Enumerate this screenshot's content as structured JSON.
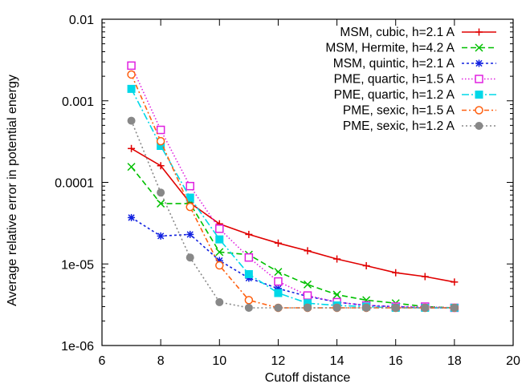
{
  "chart_data": {
    "type": "line",
    "title": "",
    "xlabel": "Cutoff distance",
    "ylabel": "Average relative error in potential energy",
    "xlim": [
      6,
      20
    ],
    "ylim": [
      1e-06,
      0.01
    ],
    "yscale": "log",
    "grid": false,
    "legend_position": "top-right",
    "x_ticks": [
      "6",
      "8",
      "10",
      "12",
      "14",
      "16",
      "18",
      "20"
    ],
    "y_ticks": [
      "1e-06",
      "1e-05",
      "0.0001",
      "0.001",
      "0.01"
    ],
    "series": [
      {
        "name": "MSM, cubic, h=2.1 A",
        "color": "#e00000",
        "dash": "",
        "marker": "plus",
        "x": [
          7,
          8,
          9,
          10,
          11,
          12,
          13,
          14,
          15,
          16,
          17,
          18
        ],
        "y": [
          0.00026,
          0.00016,
          5.6e-05,
          3.1e-05,
          2.3e-05,
          1.8e-05,
          1.45e-05,
          1.15e-05,
          9.5e-06,
          7.8e-06,
          7e-06,
          6e-06
        ]
      },
      {
        "name": "MSM, Hermite, h=4.2 A",
        "color": "#00c000",
        "dash": "7,4",
        "marker": "x",
        "x": [
          7,
          8,
          9,
          10,
          11,
          12,
          13,
          14,
          15,
          16,
          17,
          18
        ],
        "y": [
          0.000155,
          5.5e-05,
          5.5e-05,
          1.4e-05,
          1.3e-05,
          8e-06,
          5.6e-06,
          4.2e-06,
          3.6e-06,
          3.3e-06,
          3e-06,
          2.9e-06
        ]
      },
      {
        "name": "MSM, quintic, h=2.1 A",
        "color": "#1020e0",
        "dash": "3,3",
        "marker": "star",
        "x": [
          7,
          8,
          9,
          10,
          11,
          12,
          13,
          14,
          15,
          16,
          17,
          18
        ],
        "y": [
          3.7e-05,
          2.2e-05,
          2.3e-05,
          1.1e-05,
          6.7e-06,
          5e-06,
          4e-06,
          3.4e-06,
          3.1e-06,
          3e-06,
          2.9e-06,
          2.9e-06
        ]
      },
      {
        "name": "PME, quartic, h=1.5 A",
        "color": "#e020e0",
        "dash": "1.5,2.5",
        "marker": "open-square",
        "x": [
          7,
          8,
          9,
          10,
          11,
          12,
          13,
          14,
          15,
          16,
          17,
          18
        ],
        "y": [
          0.0027,
          0.00044,
          9e-05,
          2.7e-05,
          1.2e-05,
          6.1e-06,
          4.1e-06,
          3.4e-06,
          3.1e-06,
          3e-06,
          3e-06,
          2.9e-06
        ]
      },
      {
        "name": "PME, quartic, h=1.2 A",
        "color": "#00d8e8",
        "dash": "9,3,2,3",
        "marker": "filled-square",
        "x": [
          7,
          8,
          9,
          10,
          11,
          12,
          13,
          14,
          15,
          16,
          17,
          18
        ],
        "y": [
          0.0014,
          0.00028,
          6.5e-05,
          2e-05,
          7.5e-06,
          4.4e-06,
          3.3e-06,
          3.1e-06,
          3e-06,
          2.9e-06,
          2.9e-06,
          2.9e-06
        ]
      },
      {
        "name": "PME, sexic, h=1.5 A",
        "color": "#ff6010",
        "dash": "6,3,2,3",
        "marker": "open-circle",
        "x": [
          7,
          8,
          9,
          10,
          11,
          12,
          13,
          14,
          15,
          16,
          17,
          18
        ],
        "y": [
          0.0021,
          0.00032,
          5e-05,
          9.6e-06,
          3.6e-06,
          2.9e-06,
          2.9e-06,
          2.9e-06,
          2.9e-06,
          2.9e-06,
          2.9e-06,
          2.9e-06
        ]
      },
      {
        "name": "PME, sexic, h=1.2 A",
        "color": "#888888",
        "dash": "2,3",
        "marker": "filled-circle",
        "x": [
          7,
          8,
          9,
          10,
          11,
          12,
          13,
          14,
          15,
          16,
          17,
          18
        ],
        "y": [
          0.00057,
          7.5e-05,
          1.2e-05,
          3.4e-06,
          2.9e-06,
          2.9e-06,
          2.9e-06,
          2.9e-06,
          2.9e-06,
          2.9e-06,
          2.9e-06,
          2.9e-06
        ]
      }
    ]
  }
}
